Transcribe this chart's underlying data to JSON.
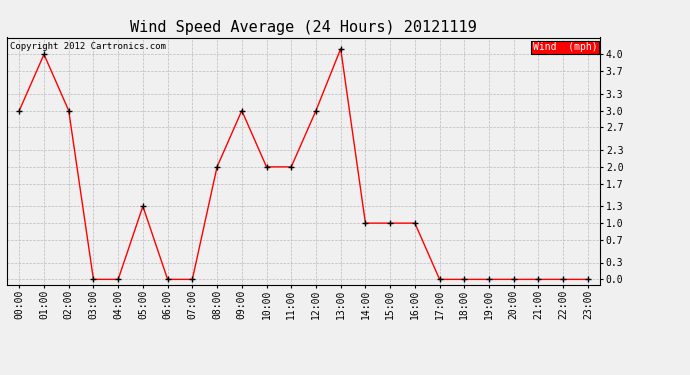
{
  "title": "Wind Speed Average (24 Hours) 20121119",
  "copyright_text": "Copyright 2012 Cartronics.com",
  "legend_label": "Wind  (mph)",
  "legend_bg": "#ff0000",
  "legend_text_color": "#ffffff",
  "hours": [
    "00:00",
    "01:00",
    "02:00",
    "03:00",
    "04:00",
    "05:00",
    "06:00",
    "07:00",
    "08:00",
    "09:00",
    "10:00",
    "11:00",
    "12:00",
    "13:00",
    "14:00",
    "15:00",
    "16:00",
    "17:00",
    "18:00",
    "19:00",
    "20:00",
    "21:00",
    "22:00",
    "23:00"
  ],
  "values": [
    3.0,
    4.0,
    3.0,
    0.0,
    0.0,
    1.3,
    0.0,
    0.0,
    2.0,
    3.0,
    2.0,
    2.0,
    3.0,
    4.1,
    1.0,
    1.0,
    1.0,
    0.0,
    0.0,
    0.0,
    0.0,
    0.0,
    0.0,
    0.0
  ],
  "line_color": "#ff0000",
  "marker_color": "#000000",
  "bg_color": "#f0f0f0",
  "grid_color": "#bbbbbb",
  "ytick_values": [
    0.0,
    0.3,
    0.7,
    1.0,
    1.3,
    1.7,
    2.0,
    2.3,
    2.7,
    3.0,
    3.3,
    3.7,
    4.0
  ],
  "ytick_labels": [
    "0.0",
    "0.3",
    "0.7",
    "1.0",
    "1.3",
    "1.7",
    "2.0",
    "2.3",
    "2.7",
    "3.0",
    "3.3",
    "3.7",
    "4.0"
  ],
  "ylim": [
    -0.1,
    4.3
  ],
  "title_fontsize": 11,
  "tick_fontsize": 7,
  "copyright_fontsize": 6.5
}
